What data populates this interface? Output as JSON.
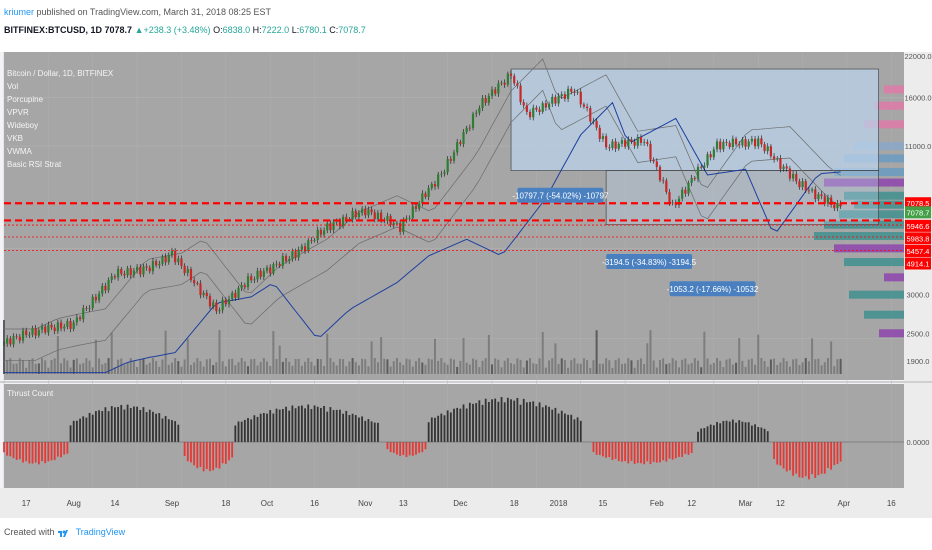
{
  "header": {
    "author": "kriumer",
    "published_text": "published on TradingView.com, March 31, 2018 08:25 EST",
    "symbol": "BITFINEX:BTCUSD, 1D",
    "last": "7078.7",
    "change": "+238.3 (+3.48%)",
    "o_label": "O:",
    "o": "6838.0",
    "h_label": "H:",
    "h": "7222.0",
    "l_label": "L:",
    "l": "6780.1",
    "c_label": "C:",
    "c": "7078.7"
  },
  "legend": {
    "items": [
      "Bitcoin / Dollar, 1D, BITFINEX",
      "Vol",
      "Porcupine",
      "VPVR",
      "Wideboy",
      "VKB",
      "VWMA",
      "Basic RSI Strat"
    ]
  },
  "measure_labels": [
    "-10797.7 (-54.02%) -10797",
    "-3194.5 (-34.83%) -3194.5",
    "-1053.2 (-17.66%) -10532"
  ],
  "price_axis": [
    "22000.0",
    "16000.0",
    "11000.0",
    "7078.5",
    "7078.7",
    "5946.6",
    "5983.8",
    "5457.4",
    "4914.1",
    "3000.0",
    "2500.0",
    "1900.0"
  ],
  "lower_pane": {
    "title": "Thrust Count",
    "zero_label": "0.0000"
  },
  "time_axis": [
    "17",
    "Aug",
    "14",
    "Sep",
    "18",
    "Oct",
    "16",
    "Nov",
    "13",
    "Dec",
    "18",
    "2018",
    "15",
    "Feb",
    "12",
    "Mar",
    "12",
    "Apr",
    "16"
  ],
  "footer": {
    "created_with": "Created with",
    "brand": "TradingView"
  },
  "colors": {
    "pane_bg": "#a6a6a6",
    "bull": "#2e7d32",
    "bear": "#c62828",
    "accent_blue": "#2196f3",
    "price_tag_red": "#ff0000",
    "price_tag_green": "#43a047",
    "thrust_pos": "#333333",
    "thrust_neg": "#e53935",
    "profile_teal": "#3f8f8f",
    "profile_purple": "#8e44ad",
    "ma_blue": "#1e3f9e"
  },
  "chart_data": {
    "type": "candlestick",
    "symbol": "BITFINEX:BTCUSD",
    "interval": "1D",
    "y_scale": "log",
    "ylim": [
      1900,
      22000
    ],
    "x_range": [
      "2017-07-10",
      "2018-04-20"
    ],
    "close_series_approx": [
      [
        "2017-07-10",
        2400
      ],
      [
        "2017-07-17",
        2600
      ],
      [
        "2017-07-24",
        2700
      ],
      [
        "2017-08-01",
        2800
      ],
      [
        "2017-08-14",
        4100
      ],
      [
        "2017-08-25",
        4300
      ],
      [
        "2017-09-01",
        4800
      ],
      [
        "2017-09-15",
        3100
      ],
      [
        "2017-09-25",
        3900
      ],
      [
        "2017-10-10",
        4800
      ],
      [
        "2017-10-20",
        5900
      ],
      [
        "2017-11-01",
        6700
      ],
      [
        "2017-11-12",
        5900
      ],
      [
        "2017-11-26",
        9200
      ],
      [
        "2017-12-07",
        15000
      ],
      [
        "2017-12-17",
        19200
      ],
      [
        "2017-12-22",
        14000
      ],
      [
        "2018-01-06",
        17000
      ],
      [
        "2018-01-16",
        11000
      ],
      [
        "2018-01-28",
        11500
      ],
      [
        "2018-02-06",
        6900
      ],
      [
        "2018-02-20",
        11100
      ],
      [
        "2018-03-05",
        11400
      ],
      [
        "2018-03-18",
        8200
      ],
      [
        "2018-03-30",
        6840
      ],
      [
        "2018-03-31",
        7078.7
      ]
    ],
    "horizontal_levels": [
      7078.5,
      5946.6,
      5983.8,
      5457.4,
      4914.1
    ],
    "thrust_count": {
      "zero": 0,
      "segments": [
        {
          "start": "2017-07-10",
          "end": "2017-07-30",
          "peak": -3
        },
        {
          "start": "2017-07-31",
          "end": "2017-09-03",
          "peak": 5
        },
        {
          "start": "2017-09-05",
          "end": "2017-09-20",
          "peak": -4
        },
        {
          "start": "2017-09-21",
          "end": "2017-11-05",
          "peak": 5
        },
        {
          "start": "2017-11-08",
          "end": "2017-11-20",
          "peak": -2
        },
        {
          "start": "2017-11-21",
          "end": "2018-01-08",
          "peak": 6
        },
        {
          "start": "2018-01-12",
          "end": "2018-02-12",
          "peak": -3
        },
        {
          "start": "2018-02-14",
          "end": "2018-03-08",
          "peak": 3
        },
        {
          "start": "2018-03-10",
          "end": "2018-03-31",
          "peak": -5
        }
      ]
    }
  }
}
